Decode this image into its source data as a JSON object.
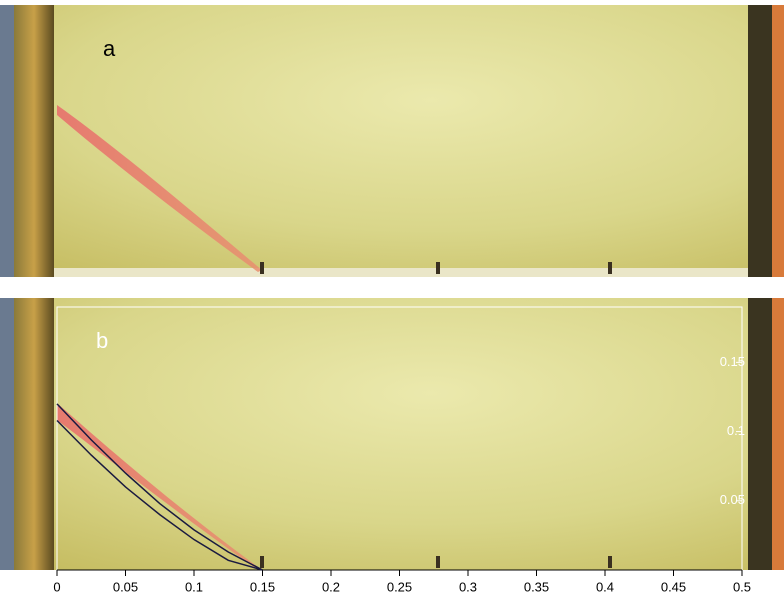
{
  "panels": [
    {
      "label": "a"
    }
  ],
  "chart_data": {
    "type": "line",
    "label": "b",
    "x": [
      0,
      0.025,
      0.05,
      0.075,
      0.1,
      0.125,
      0.15
    ],
    "series": [
      {
        "color": "#1a1a40",
        "values": [
          0.12,
          0.094,
          0.07,
          0.048,
          0.029,
          0.013,
          0
        ]
      },
      {
        "color": "#1a1a40",
        "values": [
          0.108,
          0.083,
          0.06,
          0.04,
          0.022,
          0.007,
          0
        ]
      }
    ],
    "xlim": [
      0,
      0.5
    ],
    "ylim": [
      0,
      0.19
    ],
    "xticks": [
      0,
      0.05,
      0.1,
      0.15,
      0.2,
      0.25,
      0.3,
      0.35,
      0.4,
      0.45,
      0.5
    ],
    "yticks": [
      0.05,
      0.1,
      0.15
    ]
  }
}
